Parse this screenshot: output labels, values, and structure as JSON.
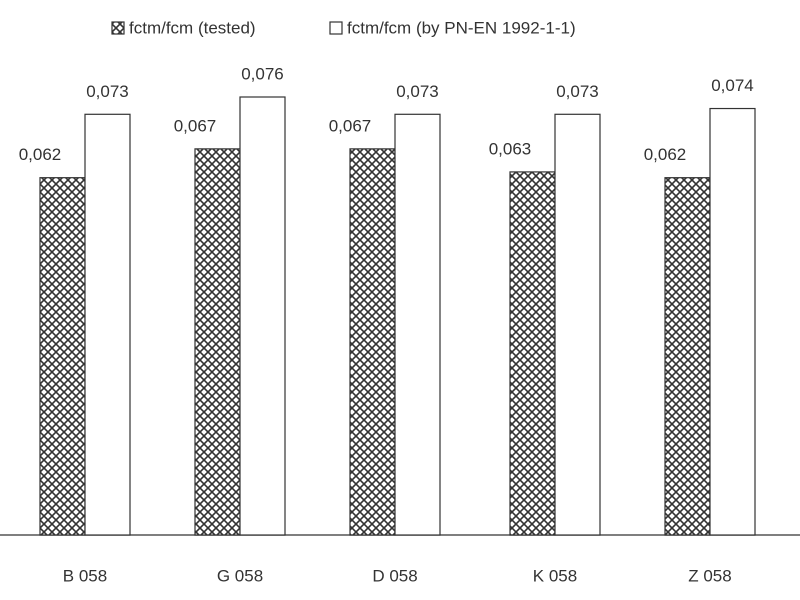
{
  "chart_data": {
    "type": "bar",
    "categories": [
      "B 058",
      "G 058",
      "D 058",
      "K 058",
      "Z 058"
    ],
    "series": [
      {
        "name": "fctm/fcm (tested)",
        "color": "#333333",
        "pattern": "crosshatch",
        "values": [
          0.062,
          0.067,
          0.067,
          0.063,
          0.062
        ],
        "value_labels": [
          "0,062",
          "0,067",
          "0,067",
          "0,063",
          "0,062"
        ]
      },
      {
        "name": "fctm/fcm (by PN-EN 1992-1-1)",
        "color": "#ffffff",
        "values": [
          0.073,
          0.076,
          0.073,
          0.073,
          0.074
        ],
        "value_labels": [
          "0,073",
          "0,076",
          "0,073",
          "0,073",
          "0,074"
        ]
      }
    ]
  }
}
